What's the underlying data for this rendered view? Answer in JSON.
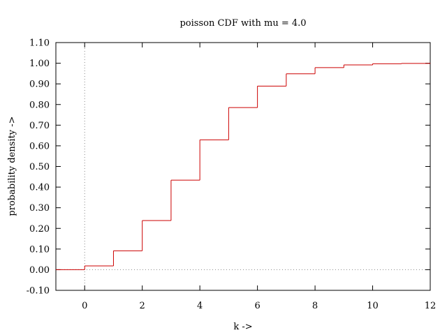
{
  "chart_data": {
    "type": "line",
    "step": true,
    "title": "poisson CDF with mu = 4.0",
    "xlabel": "k ->",
    "ylabel": "probability density ->",
    "xlim": [
      -1,
      12
    ],
    "ylim": [
      -0.1,
      1.1
    ],
    "x_ticks": [
      0,
      2,
      4,
      6,
      8,
      10,
      12
    ],
    "x_tick_labels": [
      "0",
      "2",
      "4",
      "6",
      "8",
      "10",
      "12"
    ],
    "y_ticks": [
      -0.1,
      0.0,
      0.1,
      0.2,
      0.3,
      0.4,
      0.5,
      0.6,
      0.7,
      0.8,
      0.9,
      1.0,
      1.1
    ],
    "y_tick_labels": [
      "-0.10",
      "0.00",
      "0.10",
      "0.20",
      "0.30",
      "0.40",
      "0.50",
      "0.60",
      "0.70",
      "0.80",
      "0.90",
      "1.00",
      "1.10"
    ],
    "zero_axes": true,
    "grid": false,
    "legend": "none",
    "series_color": "#cc0000",
    "series": [
      {
        "x": [
          -1,
          0,
          1,
          2,
          3,
          4,
          5,
          6,
          7,
          8,
          9,
          10,
          11,
          12
        ],
        "values": [
          0.0,
          0.0183,
          0.0916,
          0.2381,
          0.4335,
          0.6288,
          0.7851,
          0.8893,
          0.9489,
          0.9786,
          0.9919,
          0.9972,
          0.9991,
          0.9997
        ]
      }
    ]
  }
}
